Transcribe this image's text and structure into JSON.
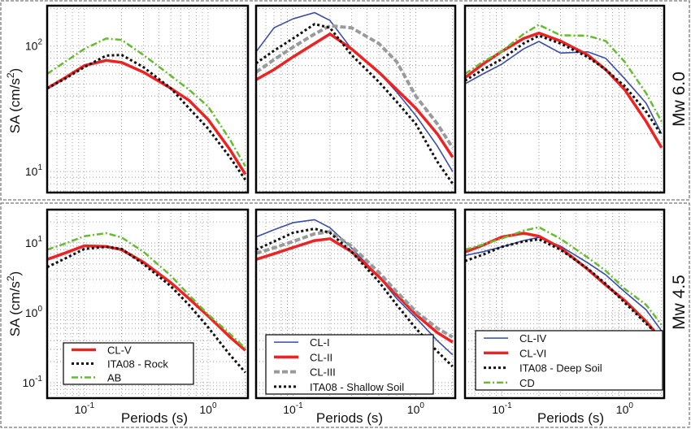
{
  "figure": {
    "row_labels": [
      "Mw 6.0",
      "Mw 4.5"
    ],
    "ylabel": "SA (cm/s",
    "ylabel_sup": "2",
    "ylabel_close": ")",
    "xlabel": "Periods (s)"
  },
  "colors": {
    "red": "#ee2222",
    "black": "#111111",
    "green": "#66bb33",
    "blue": "#3a4ca8",
    "gray": "#9a9a9a"
  },
  "chart_data": [
    {
      "type": "line",
      "row": 0,
      "col": 0,
      "xscale": "log",
      "yscale": "log",
      "grid": true,
      "xlim": [
        0.05,
        2.1
      ],
      "ylim": [
        6.8,
        210
      ],
      "yticks": [
        {
          "value": 10,
          "base": "10",
          "exp": "1"
        },
        {
          "value": 100,
          "base": "10",
          "exp": "2"
        }
      ],
      "xticks": [],
      "x": [
        0.05,
        0.07,
        0.1,
        0.15,
        0.2,
        0.3,
        0.5,
        0.7,
        1,
        1.5,
        2
      ],
      "series": [
        {
          "name": "CL-V",
          "style": "red",
          "values": [
            46,
            56,
            70,
            77,
            74,
            62,
            46,
            37,
            26,
            15,
            9.5
          ]
        },
        {
          "name": "ITA08 - Rock",
          "style": "black",
          "values": [
            46,
            55,
            68,
            84,
            85,
            68,
            46,
            32,
            22,
            13,
            8.6
          ]
        },
        {
          "name": "AB",
          "style": "green",
          "values": [
            60,
            75,
            95,
            115,
            112,
            85,
            58,
            45,
            33,
            18,
            11
          ]
        }
      ]
    },
    {
      "type": "line",
      "row": 0,
      "col": 1,
      "xscale": "log",
      "yscale": "log",
      "grid": true,
      "xlim": [
        0.05,
        2.1
      ],
      "ylim": [
        6.8,
        210
      ],
      "yticks": [],
      "xticks": [],
      "x": [
        0.05,
        0.07,
        0.1,
        0.15,
        0.2,
        0.3,
        0.5,
        0.7,
        1,
        1.5,
        2
      ],
      "series": [
        {
          "name": "CL-I",
          "style": "blue",
          "values": [
            90,
            140,
            165,
            185,
            160,
            95,
            62,
            43,
            28,
            16,
            10
          ]
        },
        {
          "name": "CL-II",
          "style": "red",
          "values": [
            54,
            65,
            82,
            105,
            125,
            95,
            62,
            45,
            32,
            20,
            13
          ]
        },
        {
          "name": "CL-III",
          "style": "gray",
          "values": [
            62,
            78,
            98,
            125,
            145,
            140,
            105,
            75,
            40,
            24,
            15.5
          ]
        },
        {
          "name": "ITA08 - Shallow Soil",
          "style": "black",
          "values": [
            73,
            92,
            115,
            150,
            140,
            85,
            52,
            36,
            24,
            12,
            8
          ]
        }
      ]
    },
    {
      "type": "line",
      "row": 0,
      "col": 2,
      "xscale": "log",
      "yscale": "log",
      "grid": true,
      "xlim": [
        0.05,
        2.1
      ],
      "ylim": [
        6.8,
        210
      ],
      "yticks": [],
      "xticks": [],
      "x": [
        0.05,
        0.07,
        0.1,
        0.15,
        0.2,
        0.3,
        0.5,
        0.7,
        1,
        1.5,
        2
      ],
      "series": [
        {
          "name": "CL-IV",
          "style": "blue",
          "values": [
            50,
            60,
            72,
            95,
            109,
            88,
            90,
            80,
            55,
            35,
            20
          ]
        },
        {
          "name": "CL-VI",
          "style": "red",
          "values": [
            56,
            72,
            91,
            115,
            127,
            110,
            85,
            65,
            45,
            25,
            15.5
          ]
        },
        {
          "name": "ITA08 - Deep Soil",
          "style": "black",
          "values": [
            53,
            65,
            79,
            105,
            121,
            105,
            82,
            65,
            48,
            30,
            19.6
          ]
        },
        {
          "name": "CD",
          "style": "green",
          "values": [
            60,
            75,
            91,
            125,
            148,
            122,
            121,
            110,
            75,
            42,
            25
          ]
        }
      ]
    },
    {
      "type": "line",
      "row": 1,
      "col": 0,
      "xscale": "log",
      "yscale": "log",
      "grid": true,
      "xlim": [
        0.05,
        2.1
      ],
      "ylim": [
        0.06,
        30
      ],
      "legend": "bottom-left",
      "yticks": [
        {
          "value": 0.1,
          "base": "10",
          "exp": "-1"
        },
        {
          "value": 1,
          "base": "10",
          "exp": "0"
        },
        {
          "value": 10,
          "base": "10",
          "exp": "1"
        }
      ],
      "xticks": [
        {
          "value": 0.1,
          "base": "10",
          "exp": "-1"
        },
        {
          "value": 1,
          "base": "10",
          "exp": "0"
        }
      ],
      "x": [
        0.05,
        0.07,
        0.1,
        0.15,
        0.2,
        0.3,
        0.5,
        0.7,
        1,
        1.5,
        2
      ],
      "series": [
        {
          "name": "CL-V",
          "style": "red",
          "values": [
            5.8,
            7.2,
            9.1,
            8.9,
            8.0,
            5.3,
            2.7,
            1.6,
            0.9,
            0.45,
            0.29
          ]
        },
        {
          "name": "ITA08 - Rock",
          "style": "black",
          "values": [
            4.5,
            6.0,
            8.2,
            8.8,
            8.2,
            5.0,
            2.4,
            1.3,
            0.62,
            0.25,
            0.14
          ]
        },
        {
          "name": "AB",
          "style": "green",
          "values": [
            8,
            9.8,
            12.5,
            13.8,
            12,
            7.5,
            3.4,
            1.8,
            0.95,
            0.5,
            0.31
          ]
        }
      ]
    },
    {
      "type": "line",
      "row": 1,
      "col": 1,
      "xscale": "log",
      "yscale": "log",
      "grid": true,
      "xlim": [
        0.05,
        2.1
      ],
      "ylim": [
        0.06,
        30
      ],
      "legend": "bottom-left",
      "yticks": [],
      "xticks": [
        {
          "value": 0.1,
          "base": "10",
          "exp": "-1"
        },
        {
          "value": 1,
          "base": "10",
          "exp": "0"
        }
      ],
      "x": [
        0.05,
        0.07,
        0.1,
        0.15,
        0.2,
        0.3,
        0.5,
        0.7,
        1,
        1.5,
        2
      ],
      "series": [
        {
          "name": "CL-I",
          "style": "blue",
          "values": [
            12.2,
            15.5,
            19.5,
            21.5,
            16.5,
            8.5,
            3.3,
            1.6,
            0.85,
            0.4,
            0.25
          ]
        },
        {
          "name": "CL-II",
          "style": "red",
          "values": [
            5.8,
            7,
            8.6,
            10.8,
            11.5,
            7.5,
            3.3,
            1.8,
            0.95,
            0.52,
            0.38
          ]
        },
        {
          "name": "CL-III",
          "style": "gray",
          "values": [
            7.1,
            8.5,
            10.5,
            13.5,
            14.5,
            9,
            3.8,
            2,
            1.05,
            0.6,
            0.45
          ]
        },
        {
          "name": "ITA08 - Shallow Soil",
          "style": "black",
          "values": [
            8,
            10.5,
            14,
            16,
            14,
            7.5,
            2.8,
            1.3,
            0.6,
            0.28,
            0.17
          ]
        }
      ]
    },
    {
      "type": "line",
      "row": 1,
      "col": 2,
      "xscale": "log",
      "yscale": "log",
      "grid": true,
      "xlim": [
        0.05,
        2.1
      ],
      "ylim": [
        0.06,
        30
      ],
      "legend": "bottom",
      "yticks": [],
      "xticks": [
        {
          "value": 0.1,
          "base": "10",
          "exp": "-1"
        },
        {
          "value": 1,
          "base": "10",
          "exp": "0"
        }
      ],
      "x": [
        0.05,
        0.07,
        0.1,
        0.15,
        0.2,
        0.3,
        0.5,
        0.7,
        1,
        1.5,
        2
      ],
      "series": [
        {
          "name": "CL-IV",
          "style": "blue",
          "values": [
            6.6,
            7.5,
            8.8,
            10.8,
            12,
            9,
            5.2,
            3.5,
            2,
            1.1,
            0.55
          ]
        },
        {
          "name": "CL-VI",
          "style": "red",
          "values": [
            7.4,
            9.3,
            12.2,
            13.8,
            12.5,
            8.5,
            4.2,
            2.5,
            1.5,
            0.75,
            0.41
          ]
        },
        {
          "name": "ITA08 - Deep Soil",
          "style": "black",
          "values": [
            5.5,
            6.8,
            8.8,
            10.5,
            11.3,
            8,
            4.3,
            2.6,
            1.4,
            0.7,
            0.43
          ]
        },
        {
          "name": "CD",
          "style": "green",
          "values": [
            8,
            9.5,
            11.6,
            15,
            16.8,
            11.5,
            6.2,
            4,
            2.2,
            1.3,
            0.67
          ]
        }
      ]
    }
  ]
}
